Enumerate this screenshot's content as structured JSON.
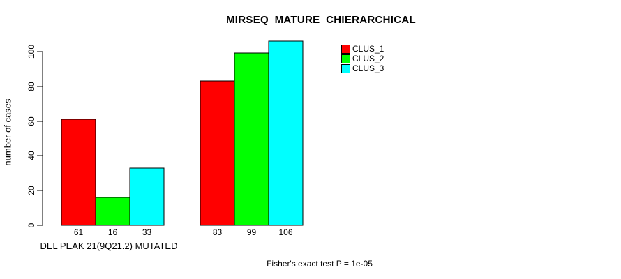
{
  "chart_data": {
    "type": "bar",
    "title": "MIRSEQ_MATURE_CHIERARCHICAL",
    "xlabel": "",
    "ylabel": "number of cases",
    "groups": [
      {
        "label": "DEL PEAK 21(9Q21.2) MUTATED",
        "values": [
          61,
          16,
          33
        ]
      },
      {
        "label": "",
        "values": [
          83,
          99,
          106
        ]
      }
    ],
    "series": [
      {
        "name": "CLUS_1",
        "color": "#ff0000"
      },
      {
        "name": "CLUS_2",
        "color": "#00ff00"
      },
      {
        "name": "CLUS_3",
        "color": "#00ffff"
      }
    ],
    "yticks": [
      0,
      20,
      40,
      60,
      80,
      100
    ],
    "ylim": [
      0,
      107
    ],
    "grid": false,
    "legend_position": "top-right",
    "bar_value_labels_shown": true,
    "annotation": "Fisher's exact test P = 1e-05",
    "colors": {
      "background": "#ffffff",
      "axis": "#000000",
      "bar_border": "#000000",
      "text": "#000000"
    }
  }
}
